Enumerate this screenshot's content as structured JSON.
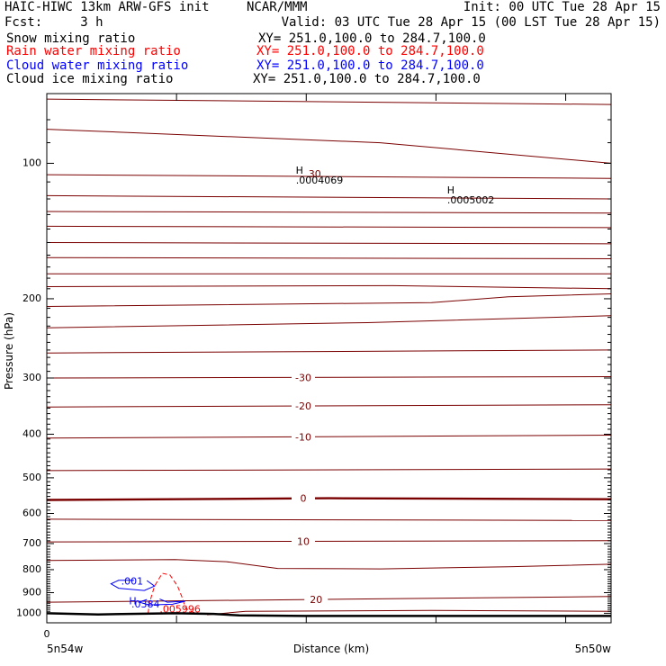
{
  "header": {
    "left_line1": "HAIC-HIWC 13km ARW-GFS init",
    "center_line1": "NCAR/MMM",
    "right_line1": "Init: 00 UTC Tue 28 Apr 15",
    "left_line2": "Fcst:     3 h",
    "right_line2": "Valid: 03 UTC Tue 28 Apr 15 (00 LST Tue 28 Apr 15)"
  },
  "fields": [
    {
      "name": "Snow mixing ratio",
      "xy": "XY= 251.0,100.0 to 284.7,100.0",
      "color": "#000000"
    },
    {
      "name": "Rain water mixing ratio",
      "xy": "XY= 251.0,100.0 to 284.7,100.0",
      "color": "#ff0000"
    },
    {
      "name": "Cloud water mixing ratio",
      "xy": "XY= 251.0,100.0 to 284.7,100.0",
      "color": "#0000ff"
    },
    {
      "name": "Cloud ice mixing ratio",
      "xy": "XY= 251.0,100.0 to 284.7,100.0",
      "color": "#000000"
    }
  ],
  "chart_data": {
    "type": "line",
    "ylabel": "Pressure (hPa)",
    "xlabel": "Distance (km)",
    "y_scale": "log",
    "y_reversed": true,
    "ylim": [
      1050,
      70
    ],
    "yticks": [
      100,
      200,
      300,
      400,
      500,
      600,
      700,
      800,
      900,
      1000
    ],
    "xtick_label_left": "0",
    "x_endpoint_left": "5n54w",
    "x_endpoint_right": "5n50w",
    "xlim": [
      0,
      440
    ],
    "colors": {
      "temperature": "#7a0000",
      "rain": "#ff0000",
      "cloud_water": "#0000ff",
      "terrain": "#000000"
    },
    "temperature_contours": [
      {
        "pts": [
          [
            0,
            72
          ],
          [
            440,
            74
          ]
        ]
      },
      {
        "pts": [
          [
            0,
            84
          ],
          [
            260,
            90
          ],
          [
            440,
            100
          ]
        ]
      },
      {
        "pts": [
          [
            0,
            106
          ],
          [
            440,
            108
          ]
        ]
      },
      {
        "pts": [
          [
            0,
            118
          ],
          [
            440,
            120
          ]
        ]
      },
      {
        "pts": [
          [
            0,
            128
          ],
          [
            440,
            129
          ]
        ]
      },
      {
        "pts": [
          [
            0,
            138
          ],
          [
            440,
            139
          ]
        ]
      },
      {
        "pts": [
          [
            0,
            150
          ],
          [
            440,
            151
          ]
        ]
      },
      {
        "pts": [
          [
            0,
            162
          ],
          [
            440,
            163
          ]
        ]
      },
      {
        "pts": [
          [
            0,
            176
          ],
          [
            440,
            176
          ]
        ]
      },
      {
        "pts": [
          [
            0,
            188
          ],
          [
            270,
            187
          ],
          [
            440,
            190
          ]
        ]
      },
      {
        "pts": [
          [
            0,
            208
          ],
          [
            300,
            204
          ],
          [
            360,
            198
          ],
          [
            440,
            195
          ]
        ]
      },
      {
        "pts": [
          [
            0,
            232
          ],
          [
            250,
            226
          ],
          [
            440,
            218
          ]
        ]
      },
      {
        "pts": [
          [
            0,
            264
          ],
          [
            440,
            260
          ]
        ]
      },
      {
        "pts": [
          [
            0,
            300
          ],
          [
            440,
            298
          ]
        ],
        "label": "-30",
        "lx": 200
      },
      {
        "pts": [
          [
            0,
            348
          ],
          [
            440,
            344
          ]
        ],
        "label": "-20",
        "lx": 200
      },
      {
        "pts": [
          [
            0,
            408
          ],
          [
            440,
            402
          ]
        ],
        "label": "-10",
        "lx": 200
      },
      {
        "pts": [
          [
            0,
            482
          ],
          [
            440,
            478
          ]
        ]
      },
      {
        "pts": [
          [
            0,
            560
          ],
          [
            220,
            555
          ],
          [
            440,
            558
          ]
        ],
        "label": "0",
        "lx": 200,
        "bold": true
      },
      {
        "pts": [
          [
            0,
            618
          ],
          [
            440,
            622
          ]
        ]
      },
      {
        "pts": [
          [
            0,
            694
          ],
          [
            440,
            690
          ]
        ],
        "label": "10",
        "lx": 200
      },
      {
        "pts": [
          [
            0,
            763
          ],
          [
            100,
            760
          ],
          [
            140,
            768
          ],
          [
            180,
            795
          ],
          [
            260,
            797
          ],
          [
            360,
            788
          ],
          [
            440,
            778
          ]
        ]
      },
      {
        "pts": [
          [
            0,
            945
          ],
          [
            440,
            918
          ]
        ],
        "label": "20",
        "lx": 210
      },
      {
        "pts": [
          [
            125,
            1008
          ],
          [
            155,
            990
          ],
          [
            300,
            986
          ],
          [
            440,
            990
          ]
        ]
      }
    ],
    "terrain": [
      [
        0,
        1000
      ],
      [
        40,
        1006
      ],
      [
        100,
        1000
      ],
      [
        130,
        1003
      ],
      [
        150,
        1011
      ],
      [
        200,
        1014
      ],
      [
        440,
        1014
      ]
    ],
    "rain_contour": {
      "pts": [
        [
          79,
          1000
        ],
        [
          80,
          950
        ],
        [
          84,
          870
        ],
        [
          90,
          815
        ],
        [
          96,
          822
        ],
        [
          102,
          870
        ],
        [
          106,
          930
        ],
        [
          108,
          975
        ],
        [
          116,
          1000
        ]
      ],
      "label": ".005996",
      "lx": 88,
      "lp": 983
    },
    "cloud_water_contours": [
      {
        "pts": [
          [
            68,
            845
          ],
          [
            56,
            845
          ],
          [
            50,
            860
          ],
          [
            56,
            880
          ],
          [
            76,
            890
          ],
          [
            84,
            870
          ],
          [
            78,
            846
          ]
        ],
        "label": ".001",
        "lx": 58,
        "lp": 852
      },
      {
        "pts": [
          [
            88,
            930
          ],
          [
            94,
            945
          ],
          [
            108,
            940
          ],
          [
            98,
            955
          ],
          [
            80,
            958
          ],
          [
            72,
            945
          ],
          [
            78,
            932
          ]
        ],
        "label": ".0384",
        "lx": 66,
        "lp": 958
      }
    ],
    "highs": [
      {
        "x": 197,
        "p": 104,
        "value": ".0004069",
        "extra": "30",
        "color": "#000000"
      },
      {
        "x": 315,
        "p": 115,
        "value": ".0005002",
        "color": "#000000"
      },
      {
        "x": 67,
        "p": 942,
        "value": "",
        "color": "#0000ff"
      }
    ]
  }
}
